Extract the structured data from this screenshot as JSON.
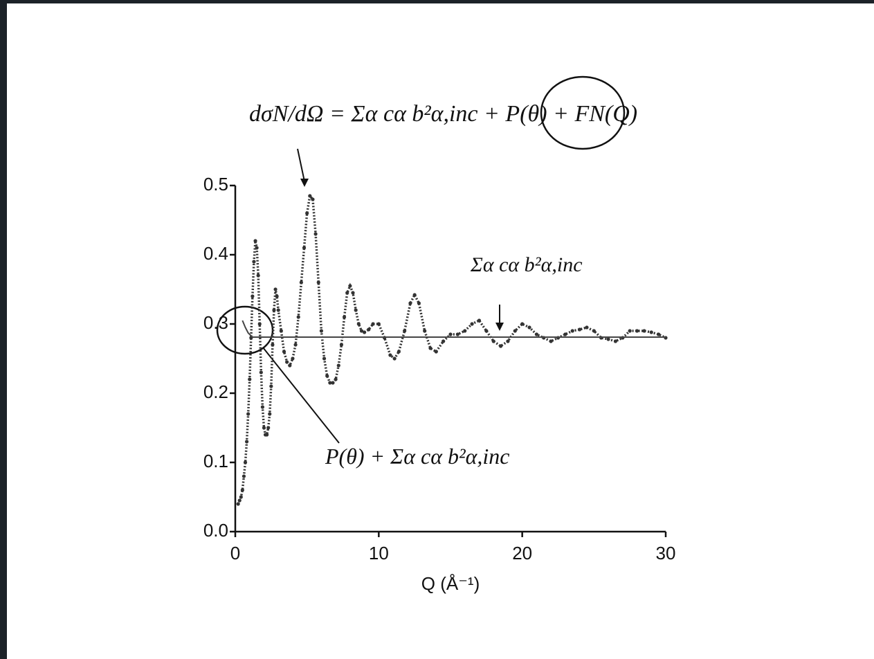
{
  "chart_data": {
    "type": "scatter",
    "x_label": "Q (Å⁻¹)",
    "xlim": [
      0,
      30
    ],
    "xticks": [
      0,
      10,
      20,
      30
    ],
    "ylim": [
      0,
      0.5
    ],
    "yticks": [
      {
        "value": 0,
        "label": "0.0"
      },
      0.1,
      0.2,
      0.3,
      0.4,
      0.5
    ],
    "series": [
      {
        "style": "dots",
        "color": "#333333",
        "x": [
          0.2,
          0.3,
          0.4,
          0.5,
          0.6,
          0.7,
          0.8,
          0.9,
          1.0,
          1.1,
          1.2,
          1.3,
          1.4,
          1.5,
          1.6,
          1.7,
          1.8,
          1.9,
          2.0,
          2.1,
          2.2,
          2.3,
          2.4,
          2.5,
          2.6,
          2.7,
          2.8,
          2.9,
          3.0,
          3.2,
          3.4,
          3.6,
          3.8,
          4.0,
          4.2,
          4.4,
          4.6,
          4.8,
          5.0,
          5.2,
          5.4,
          5.6,
          5.8,
          6.0,
          6.2,
          6.4,
          6.6,
          6.8,
          7.0,
          7.2,
          7.4,
          7.6,
          7.8,
          8.0,
          8.2,
          8.4,
          8.6,
          8.8,
          9.0,
          9.3,
          9.6,
          10.0,
          10.4,
          10.8,
          11.1,
          11.4,
          11.8,
          12.2,
          12.5,
          12.8,
          13.2,
          13.6,
          14.0,
          14.5,
          15.0,
          15.5,
          16.0,
          16.5,
          17.0,
          17.5,
          18.0,
          18.5,
          19.0,
          19.5,
          20.0,
          20.5,
          21.0,
          21.5,
          22.0,
          22.5,
          23.0,
          23.5,
          24.0,
          24.5,
          25.0,
          25.5,
          26.0,
          26.5,
          27.0,
          27.5,
          28.0,
          28.5,
          29.0,
          29.5,
          30.0
        ],
        "values": [
          0.04,
          0.045,
          0.05,
          0.06,
          0.08,
          0.1,
          0.13,
          0.17,
          0.22,
          0.28,
          0.34,
          0.39,
          0.42,
          0.41,
          0.37,
          0.3,
          0.23,
          0.18,
          0.15,
          0.14,
          0.14,
          0.15,
          0.17,
          0.21,
          0.27,
          0.32,
          0.35,
          0.34,
          0.32,
          0.29,
          0.26,
          0.245,
          0.24,
          0.25,
          0.27,
          0.31,
          0.36,
          0.41,
          0.46,
          0.485,
          0.48,
          0.43,
          0.36,
          0.29,
          0.25,
          0.225,
          0.215,
          0.215,
          0.22,
          0.24,
          0.27,
          0.31,
          0.345,
          0.355,
          0.345,
          0.32,
          0.3,
          0.29,
          0.288,
          0.292,
          0.3,
          0.3,
          0.28,
          0.255,
          0.25,
          0.26,
          0.29,
          0.33,
          0.342,
          0.33,
          0.29,
          0.265,
          0.26,
          0.275,
          0.285,
          0.285,
          0.29,
          0.3,
          0.305,
          0.29,
          0.275,
          0.268,
          0.275,
          0.29,
          0.3,
          0.295,
          0.285,
          0.28,
          0.275,
          0.28,
          0.285,
          0.29,
          0.292,
          0.295,
          0.29,
          0.28,
          0.278,
          0.275,
          0.28,
          0.29,
          0.29,
          0.29,
          0.288,
          0.285,
          0.28
        ]
      },
      {
        "style": "line",
        "color": "#444444",
        "x": [
          0.5,
          0.7,
          0.9,
          1.2,
          30
        ],
        "values": [
          0.305,
          0.295,
          0.287,
          0.281,
          0.281
        ]
      }
    ],
    "annotations": [
      "dσN/dΩ = Σα cα b²α,inc + P(θ) + FN(Q)",
      "Σα cα b²α,inc",
      "P(θ) + Σα cα b²α,inc"
    ]
  }
}
